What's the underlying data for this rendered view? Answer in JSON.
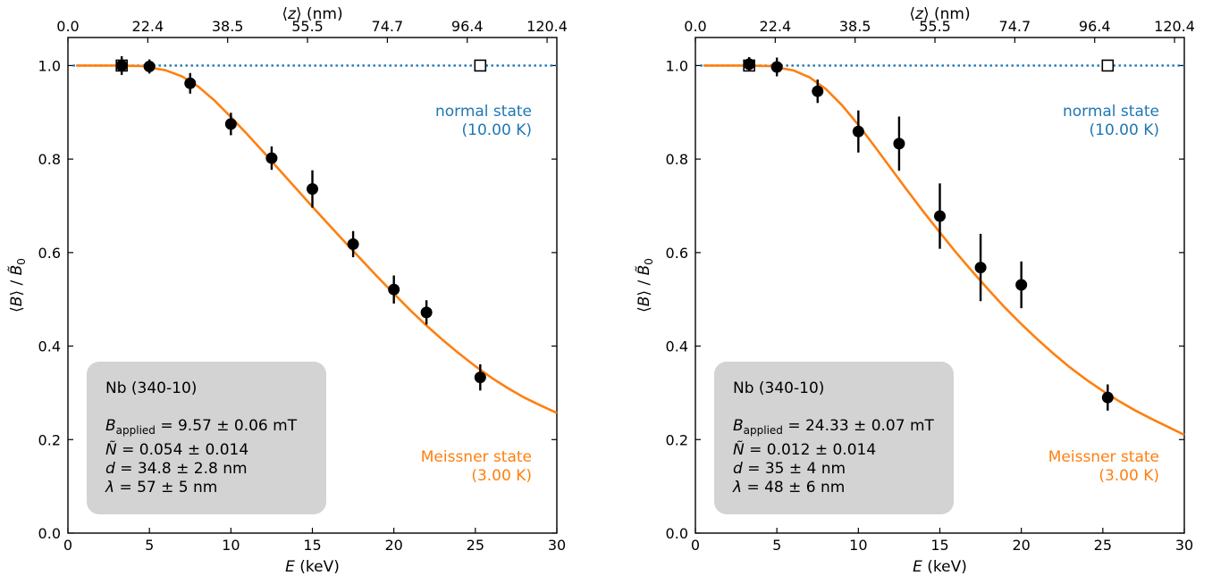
{
  "chart_data": [
    {
      "type": "scatter",
      "panel": "left",
      "xlabel": "E (keV)",
      "ylabel": "⟨B⟩ / B̃0",
      "top_xlabel": "⟨z⟩ (nm)",
      "xlim": [
        0,
        30
      ],
      "ylim": [
        0.0,
        1.06
      ],
      "x_ticks": [
        0,
        5,
        10,
        15,
        20,
        25,
        30
      ],
      "y_ticks": [
        "0.0",
        "0.2",
        "0.4",
        "0.6",
        "0.8",
        "1.0"
      ],
      "top_ticks": [
        {
          "E": 0.0,
          "label": "0.0"
        },
        {
          "E": 4.9,
          "label": "22.4"
        },
        {
          "E": 9.8,
          "label": "38.5"
        },
        {
          "E": 14.7,
          "label": "55.5"
        },
        {
          "E": 19.6,
          "label": "74.7"
        },
        {
          "E": 24.5,
          "label": "96.4"
        },
        {
          "E": 29.4,
          "label": "120.4"
        }
      ],
      "series": [
        {
          "name": "Meissner state (3.00 K)",
          "color": "#ff7f0e",
          "marker": "filled-circle",
          "points": [
            {
              "x": 3.3,
              "y": 1.0,
              "err": 0.02
            },
            {
              "x": 5.0,
              "y": 0.998,
              "err": 0.015
            },
            {
              "x": 7.5,
              "y": 0.962,
              "err": 0.022
            },
            {
              "x": 10.0,
              "y": 0.875,
              "err": 0.024
            },
            {
              "x": 12.5,
              "y": 0.802,
              "err": 0.025
            },
            {
              "x": 15.0,
              "y": 0.736,
              "err": 0.04
            },
            {
              "x": 17.5,
              "y": 0.618,
              "err": 0.028
            },
            {
              "x": 20.0,
              "y": 0.521,
              "err": 0.03
            },
            {
              "x": 22.0,
              "y": 0.472,
              "err": 0.026
            },
            {
              "x": 25.3,
              "y": 0.333,
              "err": 0.028
            }
          ],
          "fit": [
            [
              0.5,
              1.0
            ],
            [
              3,
              1.0
            ],
            [
              4.5,
              0.999
            ],
            [
              6,
              0.99
            ],
            [
              7,
              0.977
            ],
            [
              8,
              0.955
            ],
            [
              9,
              0.925
            ],
            [
              10,
              0.89
            ],
            [
              11,
              0.853
            ],
            [
              12,
              0.815
            ],
            [
              13,
              0.776
            ],
            [
              14,
              0.737
            ],
            [
              15,
              0.698
            ],
            [
              16,
              0.66
            ],
            [
              17,
              0.622
            ],
            [
              18,
              0.585
            ],
            [
              19,
              0.548
            ],
            [
              20,
              0.512
            ],
            [
              21,
              0.477
            ],
            [
              22,
              0.444
            ],
            [
              23,
              0.413
            ],
            [
              24,
              0.384
            ],
            [
              25,
              0.357
            ],
            [
              26,
              0.332
            ],
            [
              27,
              0.31
            ],
            [
              28,
              0.29
            ],
            [
              29,
              0.273
            ],
            [
              30,
              0.257
            ]
          ]
        },
        {
          "name": "normal state (10.00 K)",
          "color": "#1f77b4",
          "marker": "open-square",
          "points": [
            {
              "x": 3.3,
              "y": 1.0
            },
            {
              "x": 25.3,
              "y": 1.0
            }
          ],
          "line_y": 1.0
        }
      ],
      "annotations": {
        "normal_line1": "normal state",
        "normal_line2": "(10.00 K)",
        "meissner_line1": "Meissner state",
        "meissner_line2": "(3.00 K)"
      },
      "info_box": {
        "sample": "Nb (340-10)",
        "b_applied": "9.57 ± 0.06 mT",
        "n_tilde": "0.054 ± 0.014",
        "d": "34.8 ± 2.8 nm",
        "lambda": "57 ± 5 nm"
      }
    },
    {
      "type": "scatter",
      "panel": "right",
      "xlabel": "E (keV)",
      "ylabel": "⟨B⟩ / B̃0",
      "top_xlabel": "⟨z⟩ (nm)",
      "xlim": [
        0,
        30
      ],
      "ylim": [
        0.0,
        1.06
      ],
      "x_ticks": [
        0,
        5,
        10,
        15,
        20,
        25,
        30
      ],
      "y_ticks": [
        "0.0",
        "0.2",
        "0.4",
        "0.6",
        "0.8",
        "1.0"
      ],
      "top_ticks": [
        {
          "E": 0.0,
          "label": "0.0"
        },
        {
          "E": 4.9,
          "label": "22.4"
        },
        {
          "E": 9.8,
          "label": "38.5"
        },
        {
          "E": 14.7,
          "label": "55.5"
        },
        {
          "E": 19.6,
          "label": "74.7"
        },
        {
          "E": 24.5,
          "label": "96.4"
        },
        {
          "E": 29.4,
          "label": "120.4"
        }
      ],
      "series": [
        {
          "name": "Meissner state (3.00 K)",
          "color": "#ff7f0e",
          "marker": "filled-circle",
          "points": [
            {
              "x": 3.3,
              "y": 1.003,
              "err": 0.015
            },
            {
              "x": 5.0,
              "y": 0.997,
              "err": 0.02
            },
            {
              "x": 7.5,
              "y": 0.945,
              "err": 0.025
            },
            {
              "x": 10.0,
              "y": 0.859,
              "err": 0.045
            },
            {
              "x": 12.5,
              "y": 0.833,
              "err": 0.058
            },
            {
              "x": 15.0,
              "y": 0.678,
              "err": 0.07
            },
            {
              "x": 17.5,
              "y": 0.568,
              "err": 0.072
            },
            {
              "x": 20.0,
              "y": 0.531,
              "err": 0.05
            },
            {
              "x": 25.3,
              "y": 0.29,
              "err": 0.028
            }
          ],
          "fit": [
            [
              0.5,
              1.0
            ],
            [
              3,
              1.0
            ],
            [
              4.5,
              0.999
            ],
            [
              6,
              0.99
            ],
            [
              7,
              0.975
            ],
            [
              8,
              0.95
            ],
            [
              9,
              0.915
            ],
            [
              10,
              0.873
            ],
            [
              11,
              0.827
            ],
            [
              12,
              0.78
            ],
            [
              13,
              0.733
            ],
            [
              14,
              0.687
            ],
            [
              15,
              0.643
            ],
            [
              16,
              0.6
            ],
            [
              17,
              0.559
            ],
            [
              18,
              0.52
            ],
            [
              19,
              0.482
            ],
            [
              20,
              0.447
            ],
            [
              21,
              0.414
            ],
            [
              22,
              0.383
            ],
            [
              23,
              0.354
            ],
            [
              24,
              0.328
            ],
            [
              25,
              0.304
            ],
            [
              26,
              0.282
            ],
            [
              27,
              0.262
            ],
            [
              28,
              0.244
            ],
            [
              29,
              0.227
            ],
            [
              30,
              0.21
            ]
          ]
        },
        {
          "name": "normal state (10.00 K)",
          "color": "#1f77b4",
          "marker": "open-square",
          "points": [
            {
              "x": 3.3,
              "y": 1.0
            },
            {
              "x": 25.3,
              "y": 1.0
            }
          ],
          "line_y": 1.0
        }
      ],
      "annotations": {
        "normal_line1": "normal state",
        "normal_line2": "(10.00 K)",
        "meissner_line1": "Meissner state",
        "meissner_line2": "(3.00 K)"
      },
      "info_box": {
        "sample": "Nb (340-10)",
        "b_applied": "24.33 ± 0.07 mT",
        "n_tilde": "0.012 ± 0.014",
        "d": "35 ± 4 nm",
        "lambda": "48 ± 6 nm"
      }
    }
  ],
  "labels": {
    "top_axis_label": "(nm)",
    "bottom_axis_label": "(keV)",
    "b_label": "B",
    "b_sub": "applied",
    "n_label": "N",
    "d_label": "d",
    "lambda_label": "λ",
    "eq": " = "
  }
}
